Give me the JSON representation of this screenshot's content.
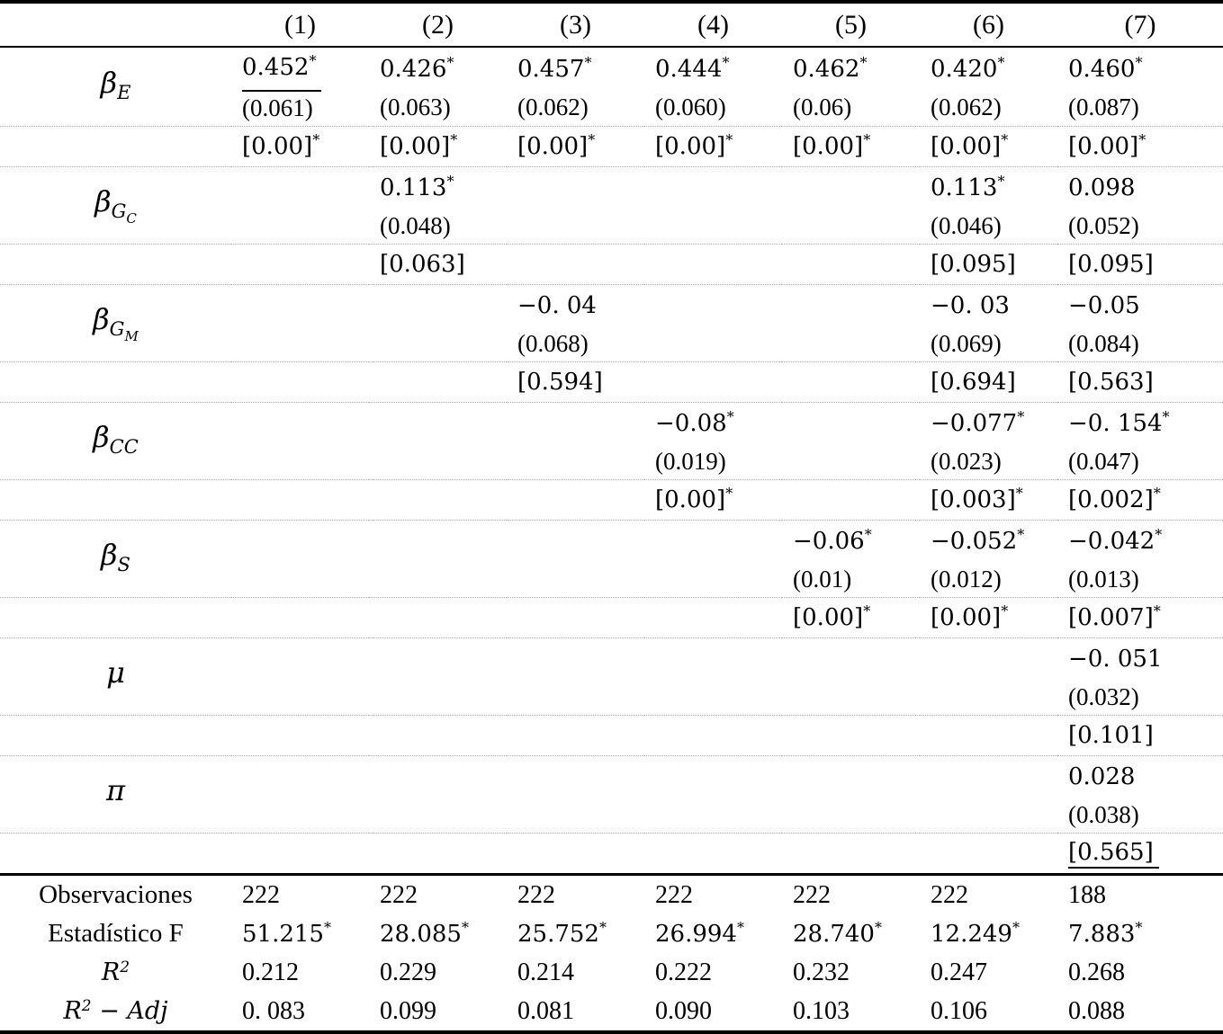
{
  "header": {
    "columns": [
      "(1)",
      "(2)",
      "(3)",
      "(4)",
      "(5)",
      "(6)",
      "(7)"
    ]
  },
  "coef_rows": [
    {
      "label": {
        "base": "β",
        "sub": "E",
        "subsub": ""
      },
      "cells": [
        {
          "est": "0.452",
          "star": "*",
          "se": "(0.061)",
          "underline": true
        },
        {
          "est": "0.426",
          "star": "*",
          "se": "(0.063)"
        },
        {
          "est": "0.457",
          "star": "*",
          "se": "(0.062)"
        },
        {
          "est": "0.444",
          "star": "*",
          "se": "(0.060)"
        },
        {
          "est": "0.462",
          "star": "*",
          "se": "(0.06)"
        },
        {
          "est": "0.420",
          "star": "*",
          "se": "(0.062)"
        },
        {
          "est": "0.460",
          "star": "*",
          "se": "(0.087)"
        }
      ],
      "pvals": [
        {
          "p": "[0.00]",
          "star": "*"
        },
        {
          "p": "[0.00]",
          "star": "*"
        },
        {
          "p": "[0.00]",
          "star": "*"
        },
        {
          "p": "[0.00]",
          "star": "*"
        },
        {
          "p": "[0.00]",
          "star": "*"
        },
        {
          "p": "[0.00]",
          "star": "*"
        },
        {
          "p": "[0.00]",
          "star": "*"
        }
      ]
    },
    {
      "label": {
        "base": "β",
        "sub": "G",
        "subsub": "C"
      },
      "cells": [
        {
          "est": "",
          "star": "",
          "se": ""
        },
        {
          "est": "0.113",
          "star": "*",
          "se": "(0.048)"
        },
        {
          "est": "",
          "star": "",
          "se": ""
        },
        {
          "est": "",
          "star": "",
          "se": ""
        },
        {
          "est": "",
          "star": "",
          "se": ""
        },
        {
          "est": "0.113",
          "star": "*",
          "se": "(0.046)"
        },
        {
          "est": "0.098",
          "star": "",
          "se": "(0.052)"
        }
      ],
      "pvals": [
        {
          "p": "",
          "star": ""
        },
        {
          "p": "[0.063]",
          "star": ""
        },
        {
          "p": "",
          "star": ""
        },
        {
          "p": "",
          "star": ""
        },
        {
          "p": "",
          "star": ""
        },
        {
          "p": "[0.095]",
          "star": ""
        },
        {
          "p": "[0.095]",
          "star": ""
        }
      ]
    },
    {
      "label": {
        "base": "β",
        "sub": "G",
        "subsub": "M"
      },
      "cells": [
        {
          "est": "",
          "star": "",
          "se": ""
        },
        {
          "est": "",
          "star": "",
          "se": ""
        },
        {
          "est": "−0. 04",
          "star": "",
          "se": "(0.068)"
        },
        {
          "est": "",
          "star": "",
          "se": ""
        },
        {
          "est": "",
          "star": "",
          "se": ""
        },
        {
          "est": "−0. 03",
          "star": "",
          "se": "(0.069)"
        },
        {
          "est": "−0.05",
          "star": "",
          "se": "(0.084)"
        }
      ],
      "pvals": [
        {
          "p": "",
          "star": ""
        },
        {
          "p": "",
          "star": ""
        },
        {
          "p": "[0.594]",
          "star": ""
        },
        {
          "p": "",
          "star": ""
        },
        {
          "p": "",
          "star": ""
        },
        {
          "p": "[0.694]",
          "star": ""
        },
        {
          "p": "[0.563]",
          "star": ""
        }
      ]
    },
    {
      "label": {
        "base": "β",
        "sub": "CC",
        "subsub": ""
      },
      "cells": [
        {
          "est": "",
          "star": "",
          "se": ""
        },
        {
          "est": "",
          "star": "",
          "se": ""
        },
        {
          "est": "",
          "star": "",
          "se": ""
        },
        {
          "est": "−0.08",
          "star": "*",
          "se": "(0.019)"
        },
        {
          "est": "",
          "star": "",
          "se": ""
        },
        {
          "est": "−0.077",
          "star": "*",
          "se": "(0.023)"
        },
        {
          "est": "−0. 154",
          "star": "*",
          "se": "(0.047)"
        }
      ],
      "pvals": [
        {
          "p": "",
          "star": ""
        },
        {
          "p": "",
          "star": ""
        },
        {
          "p": "",
          "star": ""
        },
        {
          "p": "[0.00]",
          "star": "*"
        },
        {
          "p": "",
          "star": ""
        },
        {
          "p": "[0.003]",
          "star": "*"
        },
        {
          "p": "[0.002]",
          "star": "*"
        }
      ]
    },
    {
      "label": {
        "base": "β",
        "sub": "S",
        "subsub": ""
      },
      "cells": [
        {
          "est": "",
          "star": "",
          "se": ""
        },
        {
          "est": "",
          "star": "",
          "se": ""
        },
        {
          "est": "",
          "star": "",
          "se": ""
        },
        {
          "est": "",
          "star": "",
          "se": ""
        },
        {
          "est": "−0.06",
          "star": "*",
          "se": "(0.01)"
        },
        {
          "est": "−0.052",
          "star": "*",
          "se": "(0.012)"
        },
        {
          "est": "−0.042",
          "star": "*",
          "se": "(0.013)"
        }
      ],
      "pvals": [
        {
          "p": "",
          "star": ""
        },
        {
          "p": "",
          "star": ""
        },
        {
          "p": "",
          "star": ""
        },
        {
          "p": "",
          "star": ""
        },
        {
          "p": "[0.00]",
          "star": "*"
        },
        {
          "p": "[0.00]",
          "star": "*"
        },
        {
          "p": "[0.007]",
          "star": "*"
        }
      ]
    },
    {
      "label": {
        "base": "μ",
        "sub": "",
        "subsub": ""
      },
      "cells": [
        {
          "est": "",
          "star": "",
          "se": ""
        },
        {
          "est": "",
          "star": "",
          "se": ""
        },
        {
          "est": "",
          "star": "",
          "se": ""
        },
        {
          "est": "",
          "star": "",
          "se": ""
        },
        {
          "est": "",
          "star": "",
          "se": ""
        },
        {
          "est": "",
          "star": "",
          "se": ""
        },
        {
          "est": "−0. 051",
          "star": "",
          "se": "(0.032)"
        }
      ],
      "pvals": [
        {
          "p": "",
          "star": ""
        },
        {
          "p": "",
          "star": ""
        },
        {
          "p": "",
          "star": ""
        },
        {
          "p": "",
          "star": ""
        },
        {
          "p": "",
          "star": ""
        },
        {
          "p": "",
          "star": ""
        },
        {
          "p": "[0.101]",
          "star": ""
        }
      ]
    },
    {
      "label": {
        "base": "π",
        "sub": "",
        "subsub": ""
      },
      "cells": [
        {
          "est": "",
          "star": "",
          "se": ""
        },
        {
          "est": "",
          "star": "",
          "se": ""
        },
        {
          "est": "",
          "star": "",
          "se": ""
        },
        {
          "est": "",
          "star": "",
          "se": ""
        },
        {
          "est": "",
          "star": "",
          "se": ""
        },
        {
          "est": "",
          "star": "",
          "se": ""
        },
        {
          "est": "0.028",
          "star": "",
          "se": "(0.038)"
        }
      ],
      "pvals": [
        {
          "p": "",
          "star": ""
        },
        {
          "p": "",
          "star": ""
        },
        {
          "p": "",
          "star": ""
        },
        {
          "p": "",
          "star": ""
        },
        {
          "p": "",
          "star": ""
        },
        {
          "p": "",
          "star": ""
        },
        {
          "p": "[0.565]",
          "star": "",
          "underline": true
        }
      ]
    }
  ],
  "summary_rows": [
    {
      "label": {
        "base": "Observaciones",
        "sup": "",
        "rest": ""
      },
      "values": [
        {
          "v": "222",
          "star": ""
        },
        {
          "v": "222",
          "star": ""
        },
        {
          "v": "222",
          "star": ""
        },
        {
          "v": "222",
          "star": ""
        },
        {
          "v": "222",
          "star": ""
        },
        {
          "v": "222",
          "star": ""
        },
        {
          "v": "188",
          "star": ""
        }
      ]
    },
    {
      "label": {
        "base": "Estadístico F",
        "sup": "",
        "rest": ""
      },
      "values": [
        {
          "v": "51.215",
          "star": "*"
        },
        {
          "v": "28.085",
          "star": "*"
        },
        {
          "v": "25.752",
          "star": "*"
        },
        {
          "v": "26.994",
          "star": "*"
        },
        {
          "v": "28.740",
          "star": "*"
        },
        {
          "v": "12.249",
          "star": "*"
        },
        {
          "v": "7.883",
          "star": "*"
        }
      ]
    },
    {
      "label": {
        "base": "R",
        "sup": "2",
        "rest": ""
      },
      "values": [
        {
          "v": "0.212",
          "star": ""
        },
        {
          "v": "0.229",
          "star": ""
        },
        {
          "v": "0.214",
          "star": ""
        },
        {
          "v": "0.222",
          "star": ""
        },
        {
          "v": "0.232",
          "star": ""
        },
        {
          "v": "0.247",
          "star": ""
        },
        {
          "v": "0.268",
          "star": ""
        }
      ]
    },
    {
      "label": {
        "base": "R",
        "sup": "2",
        "rest": " − Adj"
      },
      "values": [
        {
          "v": "0. 083",
          "star": ""
        },
        {
          "v": "0.099",
          "star": ""
        },
        {
          "v": "0.081",
          "star": ""
        },
        {
          "v": "0.090",
          "star": ""
        },
        {
          "v": "0.103",
          "star": ""
        },
        {
          "v": "0.106",
          "star": ""
        },
        {
          "v": "0.088",
          "star": ""
        }
      ]
    }
  ]
}
